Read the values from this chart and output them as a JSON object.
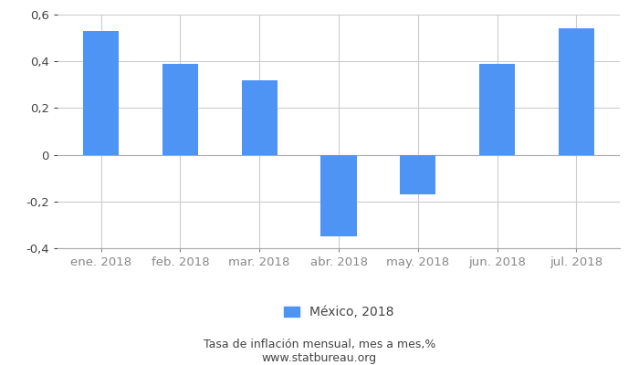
{
  "categories": [
    "ene. 2018",
    "feb. 2018",
    "mar. 2018",
    "abr. 2018",
    "may. 2018",
    "jun. 2018",
    "jul. 2018"
  ],
  "values": [
    0.53,
    0.39,
    0.32,
    -0.35,
    -0.17,
    0.39,
    0.54
  ],
  "bar_color": "#4d94f5",
  "ylim": [
    -0.4,
    0.6
  ],
  "yticks": [
    -0.4,
    -0.2,
    0,
    0.2,
    0.4,
    0.6
  ],
  "legend_label": "México, 2018",
  "footer_line1": "Tasa de inflación mensual, mes a mes,%",
  "footer_line2": "www.statbureau.org",
  "background_color": "#ffffff",
  "grid_color": "#cccccc",
  "bar_width": 0.45,
  "tick_fontsize": 9.5,
  "legend_fontsize": 10,
  "footer_fontsize": 9
}
